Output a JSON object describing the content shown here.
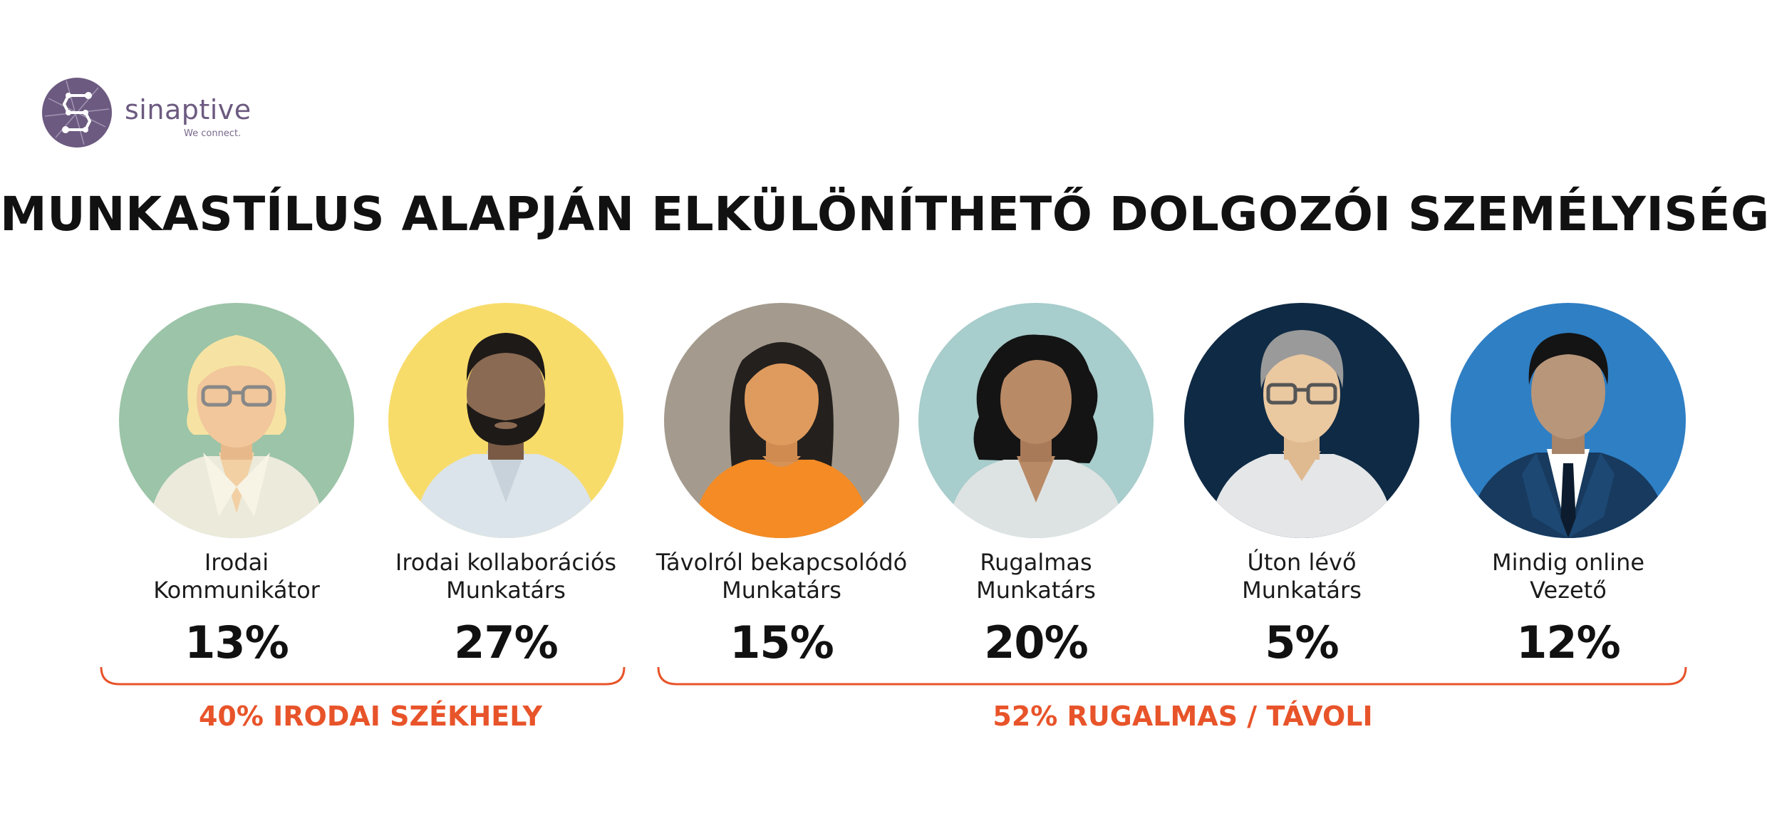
{
  "logo": {
    "name": "sinaptive",
    "tagline": "We connect."
  },
  "title": "MUNKASTÍLUS ALAPJÁN ELKÜLÖNÍTHETŐ DOLGOZÓI SZEMÉLYISÉGEK",
  "colors": {
    "accent": "#e8542a",
    "logo": "#6c5a80",
    "text": "#111111"
  },
  "personas": [
    {
      "line1": "Irodai",
      "line2": "Kommunikátor",
      "percent": "13%",
      "icon": "blonde-woman-glasses-avatar-icon",
      "bg": "#9cc4a8"
    },
    {
      "line1": "Irodai  kollaborációs",
      "line2": "Munkatárs",
      "percent": "27%",
      "icon": "bearded-man-avatar-icon",
      "bg": "#f8dc6a"
    },
    {
      "line1": "Távolról bekapcsolódó",
      "line2": "Munkatárs",
      "percent": "15%",
      "icon": "woman-orange-shirt-avatar-icon",
      "bg": "#a49b8e"
    },
    {
      "line1": "Rugalmas",
      "line2": "Munkatárs",
      "percent": "20%",
      "icon": "curly-hair-woman-avatar-icon",
      "bg": "#a7cdcc"
    },
    {
      "line1": "Úton lévő",
      "line2": "Munkatárs",
      "percent": "5%",
      "icon": "grey-hair-man-glasses-avatar-icon",
      "bg": "#0f2a44"
    },
    {
      "line1": "Mindig online",
      "line2": "Vezető",
      "percent": "12%",
      "icon": "man-in-suit-avatar-icon",
      "bg": "#2f7fc4"
    }
  ],
  "groups": [
    {
      "label": "40% IRODAI SZÉKHELY"
    },
    {
      "label": "52% RUGALMAS / TÁVOLI"
    }
  ]
}
